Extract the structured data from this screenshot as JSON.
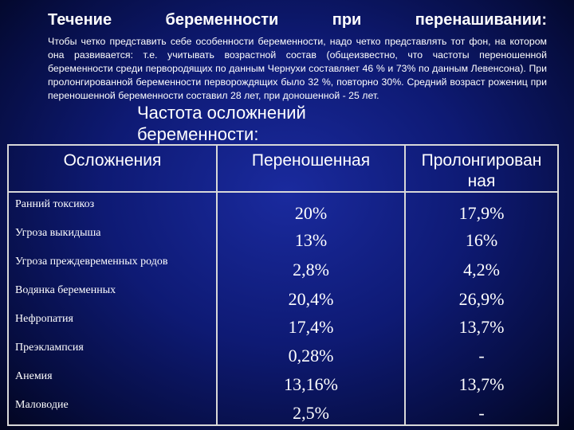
{
  "title": [
    "Течение",
    "беременности",
    "при",
    "перенашивании:"
  ],
  "intro": "Чтобы четко представить себе особенности беременности, надо четко представлять тот фон, на котором она развивается: т.е. учитывать возрастной состав (общеизвестно, что частоты переношенной беременности среди первородящих по данным Чернухи составляет 46 % и 73% по данным Левенсона). При пролонгированной беременности перворождящих было 32 %, повторно 30%. Средний возраст рожениц при переношенной беременности составил 28 лет, при доношенной - 25 лет.",
  "subtitle": [
    "Частота осложнений",
    "беременности:"
  ],
  "table": {
    "headers": [
      "Осложнения",
      "Переношенная",
      "Пролонгирован ная"
    ],
    "rows": [
      {
        "label": "Ранний токсикоз",
        "a": "20%",
        "b": "17,9%"
      },
      {
        "label": "Угроза выкидыша",
        "a": "13%",
        "b": "16%"
      },
      {
        "label": "Угроза преждевременных родов",
        "a": "2,8%",
        "b": "4,2%"
      },
      {
        "label": "Водянка беременных",
        "a": "20,4%",
        "b": "26,9%"
      },
      {
        "label": "Нефропатия",
        "a": "17,4%",
        "b": "13,7%"
      },
      {
        "label": "Преэклампсия",
        "a": "0,28%",
        "b": "-"
      },
      {
        "label": "Анемия",
        "a": "13,16%",
        "b": "13,7%"
      },
      {
        "label": "Маловодие",
        "a": "2,5%",
        "b": "-"
      }
    ]
  }
}
